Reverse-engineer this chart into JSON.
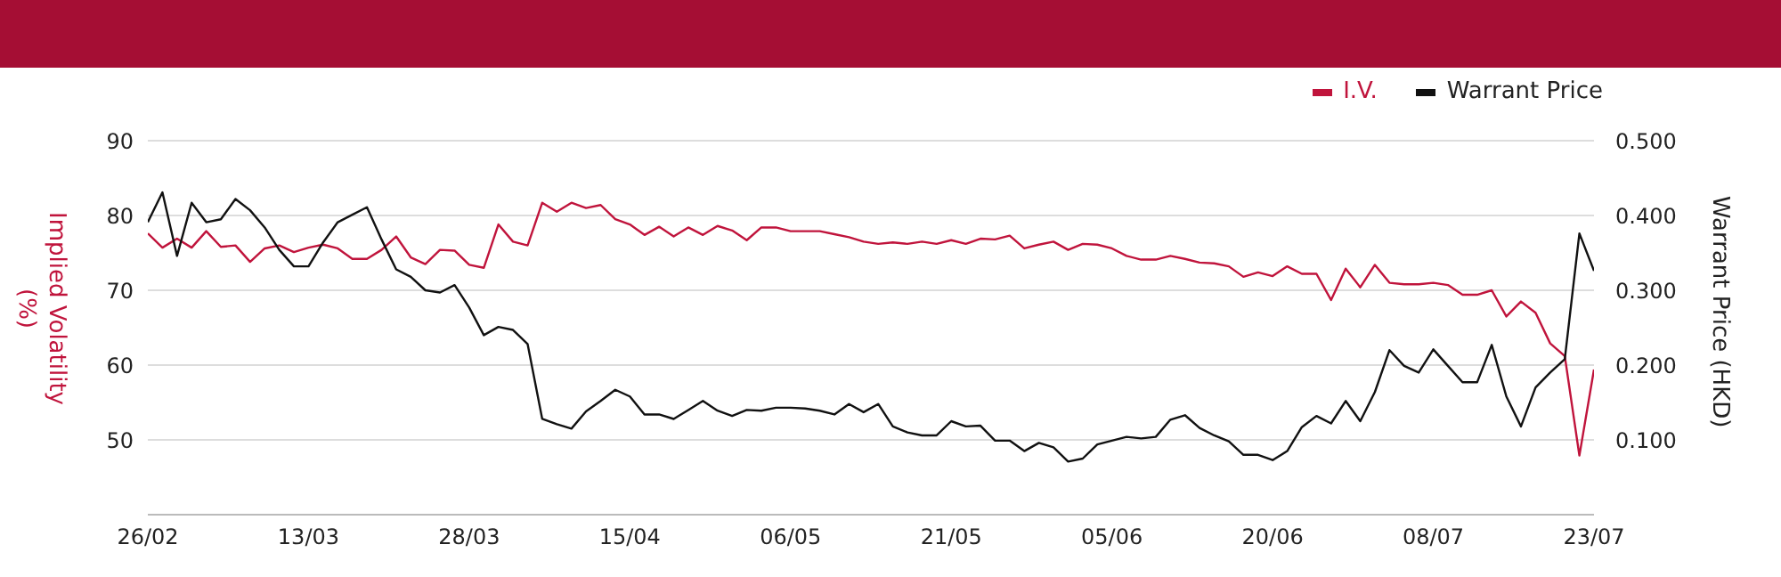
{
  "chart_data": {
    "type": "line",
    "xlabel": null,
    "ylabel": "Implied Volatility (%)",
    "y2label": "Warrant Price (HKD)",
    "categories": [
      "26/02",
      null,
      null,
      null,
      null,
      null,
      null,
      null,
      null,
      null,
      null,
      "13/03",
      null,
      null,
      null,
      null,
      null,
      null,
      null,
      null,
      null,
      null,
      "28/03",
      null,
      null,
      null,
      null,
      null,
      null,
      null,
      null,
      null,
      null,
      "15/04",
      null,
      null,
      null,
      null,
      null,
      null,
      null,
      null,
      null,
      null,
      "06/05",
      null,
      null,
      null,
      null,
      null,
      null,
      null,
      null,
      null,
      null,
      "21/05",
      null,
      null,
      null,
      null,
      null,
      null,
      null,
      null,
      null,
      null,
      "05/06",
      null,
      null,
      null,
      null,
      null,
      null,
      null,
      null,
      null,
      null,
      "20/06",
      null,
      null,
      null,
      null,
      null,
      null,
      null,
      null,
      null,
      null,
      "08/07",
      null,
      null,
      null,
      null,
      null,
      null,
      null,
      null,
      null,
      null,
      "23/07"
    ],
    "series": [
      {
        "name": "I.V.",
        "color": "#c0143c",
        "values": [
          77.6,
          75.7,
          76.9,
          75.7,
          77.9,
          75.8,
          76.0,
          73.8,
          75.6,
          76.0,
          75.1,
          75.7,
          76.1,
          75.6,
          74.2,
          74.2,
          75.4,
          77.2,
          74.4,
          73.5,
          75.4,
          75.3,
          73.4,
          73.0,
          78.8,
          76.5,
          76.0,
          81.7,
          80.5,
          81.7,
          81.0,
          81.4,
          79.5,
          78.8,
          77.4,
          78.5,
          77.2,
          78.4,
          77.4,
          78.6,
          78.0,
          76.7,
          78.4,
          78.4,
          77.9,
          77.9,
          77.9,
          77.5,
          77.1,
          76.5,
          76.2,
          76.4,
          76.2,
          76.5,
          76.2,
          76.7,
          76.2,
          76.9,
          76.8,
          77.3,
          75.6,
          76.1,
          76.5,
          75.4,
          76.2,
          76.1,
          75.6,
          74.6,
          74.1,
          74.1,
          74.6,
          74.2,
          73.7,
          73.6,
          73.2,
          71.8,
          72.4,
          71.9,
          73.2,
          72.2,
          72.2,
          68.7,
          72.9,
          70.4,
          73.4,
          71.0,
          70.8,
          70.8,
          71.0,
          70.7,
          69.4,
          69.4,
          70.0,
          66.5,
          68.5,
          67.0,
          62.9,
          61.2,
          47.9,
          59.4
        ]
      },
      {
        "name": "Warrant Price",
        "color": "#111111",
        "axis": "y2",
        "values": [
          0.391,
          0.431,
          0.346,
          0.417,
          0.391,
          0.395,
          0.422,
          0.407,
          0.384,
          0.354,
          0.332,
          0.332,
          0.364,
          0.391,
          0.401,
          0.411,
          0.368,
          0.328,
          0.318,
          0.3,
          0.297,
          0.307,
          0.277,
          0.24,
          0.251,
          0.247,
          0.228,
          0.128,
          0.121,
          0.115,
          0.138,
          0.152,
          0.167,
          0.158,
          0.134,
          0.134,
          0.128,
          0.14,
          0.152,
          0.139,
          0.132,
          0.14,
          0.139,
          0.143,
          0.143,
          0.142,
          0.139,
          0.134,
          0.148,
          0.137,
          0.148,
          0.118,
          0.11,
          0.106,
          0.106,
          0.125,
          0.118,
          0.119,
          0.099,
          0.099,
          0.085,
          0.096,
          0.09,
          0.071,
          0.075,
          0.094,
          0.099,
          0.104,
          0.102,
          0.104,
          0.127,
          0.133,
          0.116,
          0.106,
          0.098,
          0.08,
          0.08,
          0.073,
          0.085,
          0.117,
          0.132,
          0.122,
          0.152,
          0.125,
          0.164,
          0.22,
          0.199,
          0.19,
          0.221,
          0.199,
          0.177,
          0.177,
          0.227,
          0.158,
          0.118,
          0.17,
          0.19,
          0.208,
          0.376,
          0.326
        ]
      }
    ],
    "ylim": [
      40,
      90
    ],
    "yticks": [
      50,
      60,
      70,
      80,
      90
    ],
    "y2lim": [
      0,
      0.5
    ],
    "y2ticks": [
      {
        "value": 0.1,
        "label": "0.100"
      },
      {
        "value": 0.2,
        "label": "0.200"
      },
      {
        "value": 0.3,
        "label": "0.300"
      },
      {
        "value": 0.4,
        "label": "0.400"
      },
      {
        "value": 0.5,
        "label": "0.500"
      }
    ],
    "grid": "y",
    "legend": "top right",
    "marker": "none",
    "line_style": "solid"
  }
}
